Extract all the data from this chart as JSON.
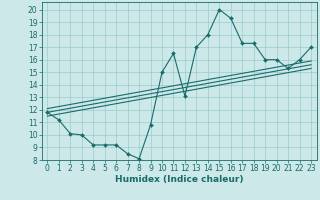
{
  "title": "",
  "xlabel": "Humidex (Indice chaleur)",
  "bg_color": "#cce8e8",
  "line_color": "#1a6b6b",
  "xlim": [
    -0.5,
    23.5
  ],
  "ylim": [
    8,
    20.6
  ],
  "xticks": [
    0,
    1,
    2,
    3,
    4,
    5,
    6,
    7,
    8,
    9,
    10,
    11,
    12,
    13,
    14,
    15,
    16,
    17,
    18,
    19,
    20,
    21,
    22,
    23
  ],
  "yticks": [
    8,
    9,
    10,
    11,
    12,
    13,
    14,
    15,
    16,
    17,
    18,
    19,
    20
  ],
  "series1_x": [
    0,
    1,
    2,
    3,
    4,
    5,
    6,
    7,
    8,
    9,
    10,
    11,
    12,
    13,
    14,
    15,
    16,
    17,
    18,
    19,
    20,
    21,
    22,
    23
  ],
  "series1_y": [
    11.8,
    11.2,
    10.1,
    10.0,
    9.2,
    9.2,
    9.2,
    8.5,
    8.1,
    10.8,
    15.0,
    16.5,
    13.1,
    17.0,
    18.0,
    20.0,
    19.3,
    17.3,
    17.3,
    16.0,
    16.0,
    15.3,
    16.0,
    17.0
  ],
  "trend1_x": [
    0,
    23
  ],
  "trend1_y": [
    11.5,
    15.3
  ],
  "trend2_x": [
    0,
    23
  ],
  "trend2_y": [
    11.8,
    15.6
  ],
  "trend3_x": [
    0,
    23
  ],
  "trend3_y": [
    12.1,
    15.9
  ],
  "grid_color": "#99cccc",
  "xlabel_fontsize": 6.5,
  "tick_fontsize": 5.5
}
